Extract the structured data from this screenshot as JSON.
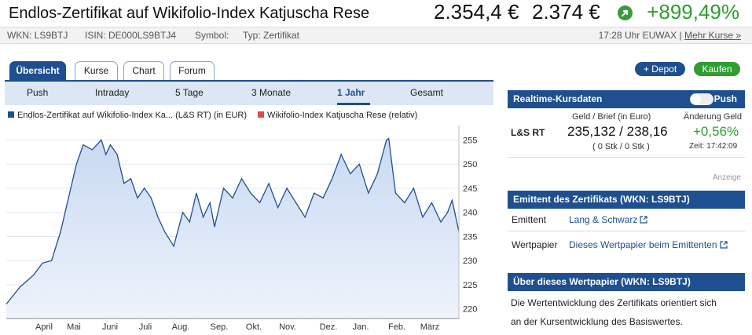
{
  "header": {
    "title": "Endlos-Zertifikat auf Wikifolio-Index Katjuscha Rese",
    "price_1": "2.354,4 €",
    "price_2": "2.374 €",
    "change_pct": "+899,49%",
    "change_icon": "arrow-up-right-icon",
    "change_color": "#2e9e2e"
  },
  "meta": {
    "wkn": "WKN: LS9BTJ",
    "isin": "ISIN: DE000LS9BTJ4",
    "symbol": "Symbol:",
    "type": "Typ: Zertifikat",
    "time_exchange": "17:28 Uhr EUWAX |",
    "more_link": "Mehr Kurse »"
  },
  "tabs": [
    {
      "label": "Übersicht",
      "active": true
    },
    {
      "label": "Kurse",
      "active": false
    },
    {
      "label": "Chart",
      "active": false
    },
    {
      "label": "Forum",
      "active": false
    }
  ],
  "actions": {
    "depot": "+ Depot",
    "kaufen": "Kaufen",
    "depot_color": "#1d4f91",
    "kaufen_color": "#2e9e2e"
  },
  "ranges": [
    {
      "label": "Push",
      "active": false
    },
    {
      "label": "Intraday",
      "active": false
    },
    {
      "label": "5 Tage",
      "active": false
    },
    {
      "label": "3 Monate",
      "active": false
    },
    {
      "label": "1 Jahr",
      "active": true
    },
    {
      "label": "Gesamt",
      "active": false
    }
  ],
  "legend": {
    "series1": "Endlos-Zertifikat auf Wikifolio-Index Ka... (L&S RT) (in EUR)",
    "series2": "Wikifolio-Index Katjuscha Rese (relativ)",
    "series1_color": "#1d4f91",
    "series2_color": "#e0474c"
  },
  "chart_data": {
    "type": "area",
    "xlabel": "",
    "ylabel": "",
    "ylim": [
      218,
      258
    ],
    "x_tick_labels": [
      "April",
      "Mai",
      "Juni",
      "Juli",
      "Aug.",
      "Sep.",
      "Okt.",
      "Nov.",
      "Dez.",
      "Jan.",
      "Feb.",
      "März"
    ],
    "y_ticks": [
      220,
      225,
      230,
      235,
      240,
      245,
      250,
      255
    ],
    "grid": true,
    "series": [
      {
        "name": "Endlos-Zertifikat auf Wikifolio-Index Ka... (L&S RT) (in EUR)",
        "color": "#1d4f91",
        "x": [
          0,
          0.03,
          0.06,
          0.08,
          0.1,
          0.12,
          0.14,
          0.155,
          0.17,
          0.19,
          0.21,
          0.22,
          0.23,
          0.245,
          0.26,
          0.275,
          0.29,
          0.305,
          0.32,
          0.335,
          0.35,
          0.37,
          0.39,
          0.405,
          0.42,
          0.435,
          0.45,
          0.46,
          0.48,
          0.5,
          0.52,
          0.54,
          0.56,
          0.58,
          0.6,
          0.62,
          0.64,
          0.66,
          0.68,
          0.7,
          0.72,
          0.74,
          0.76,
          0.78,
          0.8,
          0.82,
          0.84,
          0.845,
          0.86,
          0.88,
          0.9,
          0.92,
          0.94,
          0.96,
          0.975,
          0.985,
          1.0
        ],
        "values": [
          221,
          224.5,
          227,
          229.5,
          230,
          236,
          244,
          250,
          254,
          253,
          255,
          252,
          254,
          252,
          246,
          247,
          243,
          245,
          243,
          239,
          236,
          233,
          240,
          238,
          244,
          239,
          242,
          237,
          245,
          243,
          247,
          244,
          242,
          246,
          241,
          245,
          242,
          239,
          244,
          243,
          247,
          252,
          248,
          250,
          244,
          248,
          255,
          255.3,
          244,
          242,
          245,
          239,
          242,
          238,
          240,
          242.5,
          236
        ]
      }
    ]
  },
  "realtime": {
    "title": "Realtime-Kursdaten",
    "push_label": "Push",
    "sub_left": "Geld / Brief (in Euro)",
    "sub_right": "Änderung Geld",
    "exchange": "L&S RT",
    "bid_ask": "235,132 / 238,16",
    "sizes": "( 0 Stk / 0 Stk )",
    "change": "+0,56%",
    "time": "Zeit: 17:42:09",
    "change_color": "#2e9e2e"
  },
  "ad_label": "Anzeige",
  "emittent": {
    "title": "Emittent des Zertifikats (WKN: LS9BTJ)",
    "row1_label": "Emittent",
    "row1_link": "Lang & Schwarz",
    "row2_label": "Wertpapier",
    "row2_link": "Dieses Wertpapier beim Emittenten"
  },
  "about": {
    "title": "Über dieses Wertpapier (WKN: LS9BTJ)",
    "text_line1": "Die Wertentwicklung des Zertifikats orientiert sich",
    "text_line2": "an der Kursentwicklung des Basiswertes."
  }
}
